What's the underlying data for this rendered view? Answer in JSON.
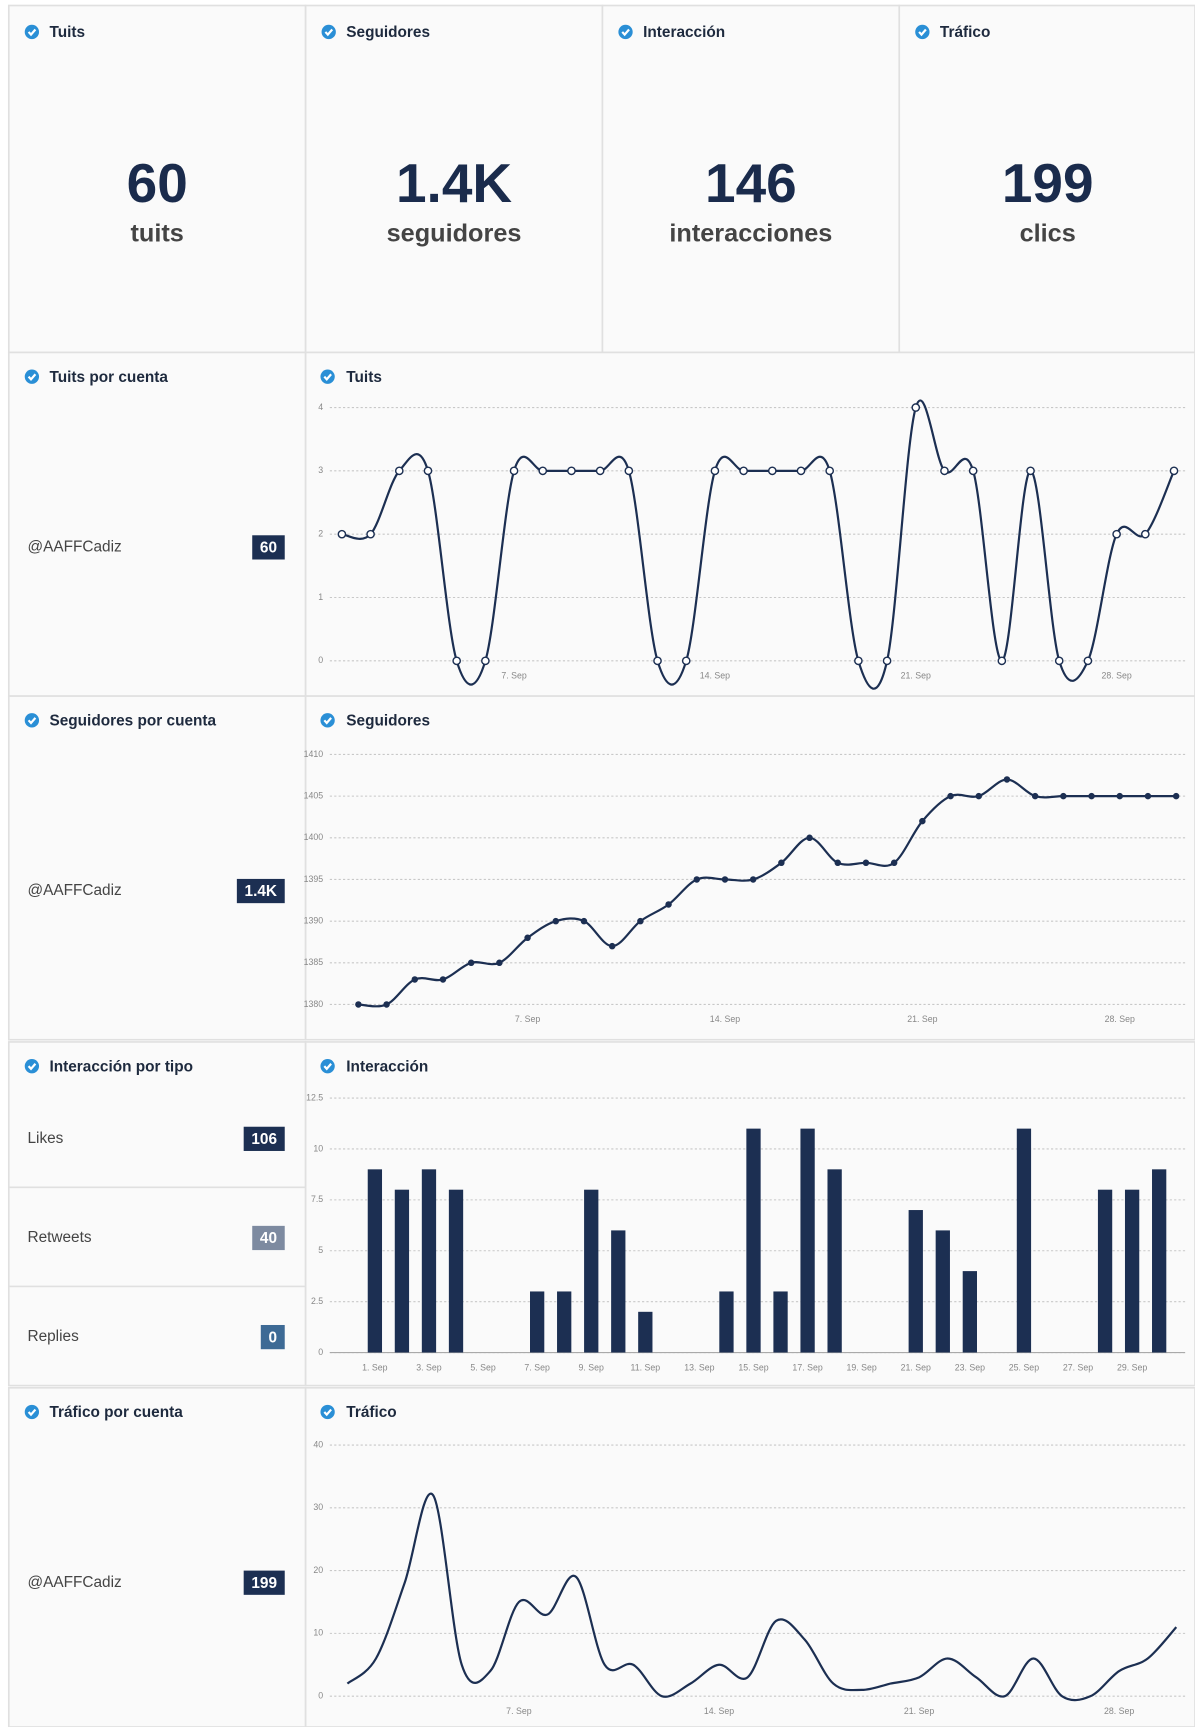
{
  "kpis": [
    {
      "title": "Tuits",
      "value": 60,
      "unit": "tuits"
    },
    {
      "title": "Seguidores",
      "value": "1.4K",
      "unit": "seguidores"
    },
    {
      "title": "Interacción",
      "value": 146,
      "unit": "interacciones"
    },
    {
      "title": "Tráfico",
      "value": 199,
      "unit": "clics"
    }
  ],
  "panels": [
    {
      "title": "Tuits por cuenta",
      "rows": [
        {
          "label": "@AAFFCadiz",
          "value": 60,
          "color": "#1c2f52"
        }
      ]
    },
    {
      "title": "Seguidores por cuenta",
      "rows": [
        {
          "label": "@AAFFCadiz",
          "value": "1.4K",
          "color": "#1c2f52"
        }
      ]
    },
    {
      "title": "Interacción por tipo",
      "rows": [
        {
          "label": "Likes",
          "value": 106,
          "color": "#1c2f52"
        },
        {
          "label": "Retweets",
          "value": 40,
          "color": "#7d8aa0"
        },
        {
          "label": "Replies",
          "value": 0,
          "color": "#3d6a95"
        }
      ]
    },
    {
      "title": "Tráfico por cuenta",
      "rows": [
        {
          "label": "@AAFFCadiz",
          "value": 199,
          "color": "#1c2f52"
        }
      ]
    }
  ],
  "chart_data": [
    {
      "type": "line",
      "title": "Tuits",
      "color": "#1c2f52",
      "markers": true,
      "grid": true,
      "categories": [
        null,
        null,
        null,
        null,
        null,
        null,
        "7. Sep",
        null,
        null,
        null,
        null,
        null,
        null,
        "14. Sep",
        null,
        null,
        null,
        null,
        null,
        null,
        "21. Sep",
        null,
        null,
        null,
        null,
        null,
        null,
        "28. Sep",
        null,
        null
      ],
      "values": [
        2,
        2,
        3,
        3,
        0,
        0,
        3,
        3,
        3,
        3,
        3,
        0,
        0,
        3,
        3,
        3,
        3,
        3,
        0,
        0,
        4,
        3,
        3,
        0,
        3,
        0,
        0,
        2,
        2,
        3
      ],
      "ylim": [
        0,
        4
      ],
      "yticks": [
        0,
        1,
        2,
        3,
        4
      ]
    },
    {
      "type": "line",
      "title": "Seguidores",
      "color": "#1c2f52",
      "markers": true,
      "grid": true,
      "categories": [
        null,
        null,
        null,
        null,
        null,
        null,
        "7. Sep",
        null,
        null,
        null,
        null,
        null,
        null,
        "14. Sep",
        null,
        null,
        null,
        null,
        null,
        null,
        "21. Sep",
        null,
        null,
        null,
        null,
        null,
        null,
        "28. Sep",
        null,
        null
      ],
      "values": [
        1380,
        1380,
        1383,
        1383,
        1385,
        1385,
        1388,
        1390,
        1390,
        1387,
        1390,
        1392,
        1395,
        1395,
        1395,
        1397,
        1400,
        1397,
        1397,
        1397,
        1402,
        1405,
        1405,
        1407,
        1405,
        1405,
        1405,
        1405,
        1405,
        1405
      ],
      "ylim": [
        1380,
        1410
      ],
      "yticks": [
        1380,
        1385,
        1390,
        1395,
        1400,
        1405,
        1410
      ]
    },
    {
      "type": "bar",
      "title": "Interacción",
      "color": "#1c2f52",
      "grid": true,
      "categories": [
        "1. Sep",
        null,
        "3. Sep",
        null,
        "5. Sep",
        null,
        "7. Sep",
        null,
        "9. Sep",
        null,
        "11. Sep",
        null,
        "13. Sep",
        null,
        "15. Sep",
        null,
        "17. Sep",
        null,
        "19. Sep",
        null,
        "21. Sep",
        null,
        "23. Sep",
        null,
        "25. Sep",
        null,
        "27. Sep",
        null,
        "29. Sep",
        null
      ],
      "values": [
        9,
        8,
        9,
        8,
        0,
        0,
        3,
        3,
        8,
        6,
        2,
        0,
        0,
        3,
        11,
        3,
        11,
        9,
        0,
        0,
        7,
        6,
        4,
        0,
        11,
        0,
        0,
        8,
        8,
        9
      ],
      "ylim": [
        0,
        12.5
      ],
      "yticks": [
        0,
        2.5,
        5,
        7.5,
        10,
        12.5
      ]
    },
    {
      "type": "line",
      "title": "Tráfico",
      "color": "#1c2f52",
      "markers": false,
      "grid": true,
      "categories": [
        null,
        null,
        null,
        null,
        null,
        null,
        "7. Sep",
        null,
        null,
        null,
        null,
        null,
        null,
        "14. Sep",
        null,
        null,
        null,
        null,
        null,
        null,
        "21. Sep",
        null,
        null,
        null,
        null,
        null,
        null,
        "28. Sep",
        null,
        null
      ],
      "values": [
        2,
        6,
        18,
        32,
        5,
        4,
        15,
        13,
        19,
        5,
        5,
        0,
        2,
        5,
        3,
        12,
        9,
        2,
        1,
        2,
        3,
        6,
        3,
        0,
        6,
        0,
        0,
        4,
        6,
        11
      ],
      "ylim": [
        0,
        40
      ],
      "yticks": [
        0,
        10,
        20,
        30,
        40
      ]
    }
  ]
}
